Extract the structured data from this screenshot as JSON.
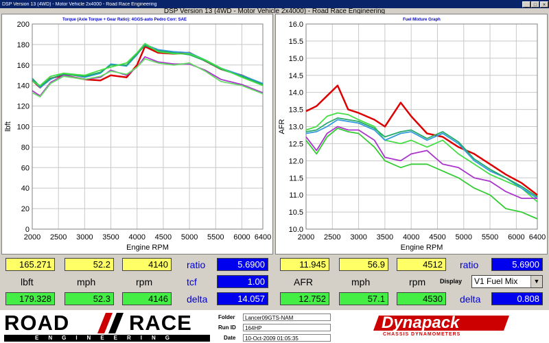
{
  "window": {
    "title": "DSP Version 13 (4WD) - Motor Vehicle 2x4000 - Road Race Engineering",
    "app_title": "DSP Version 13 (4WD - Motor Vehicle 2x4000) - Road Race Engineering"
  },
  "chart_data": [
    {
      "type": "line",
      "title": "Torque (Axle Torque + Gear Ratio): 4GGS-auto Pedro     Corr: SAE",
      "xlabel": "Engine RPM",
      "ylabel": "lbft",
      "xlim": [
        2000,
        6400
      ],
      "ylim": [
        0,
        200
      ],
      "xticks": [
        "2000",
        "2500",
        "3000",
        "3500",
        "4000",
        "4500",
        "5000",
        "5500",
        "6000",
        "6400"
      ],
      "yticks": [
        "0",
        "20",
        "40",
        "60",
        "80",
        "100",
        "120",
        "140",
        "160",
        "180",
        "200"
      ],
      "grid": true,
      "series": [
        {
          "color": "#dd0000",
          "x": [
            2000,
            2150,
            2350,
            2600,
            3000,
            3300,
            3500,
            3800,
            4000,
            4150,
            4400,
            4700,
            5000,
            5300,
            5600,
            6000,
            6400
          ],
          "y": [
            145,
            138,
            147,
            150,
            146,
            145,
            150,
            148,
            160,
            178,
            172,
            171,
            172,
            164,
            156,
            150,
            141
          ]
        },
        {
          "color": "#3399dd",
          "x": [
            2000,
            2150,
            2350,
            2600,
            3000,
            3300,
            3500,
            3800,
            4000,
            4150,
            4400,
            4700,
            5000,
            5300,
            5600,
            6000,
            6400
          ],
          "y": [
            146,
            138,
            146,
            152,
            148,
            152,
            161,
            159,
            170,
            180,
            175,
            173,
            172,
            165,
            157,
            150,
            142
          ]
        },
        {
          "color": "#22aa66",
          "x": [
            2000,
            2150,
            2350,
            2600,
            3000,
            3300,
            3500,
            3800,
            4000,
            4150,
            4400,
            4700,
            5000,
            5300,
            5600,
            6000,
            6400
          ],
          "y": [
            147,
            139,
            147,
            151,
            149,
            153,
            160,
            160,
            171,
            179,
            174,
            172,
            170,
            164,
            156,
            149,
            141
          ]
        },
        {
          "color": "#44dd44",
          "x": [
            2000,
            2150,
            2350,
            2600,
            3000,
            3300,
            3500,
            3800,
            4000,
            4150,
            4400,
            4700,
            5000,
            5300,
            5600,
            6000,
            6400
          ],
          "y": [
            144,
            140,
            149,
            152,
            150,
            155,
            158,
            162,
            172,
            181,
            173,
            171,
            171,
            165,
            157,
            148,
            140
          ]
        },
        {
          "color": "#aa33cc",
          "x": [
            2000,
            2150,
            2350,
            2600,
            3000,
            3300,
            3500,
            3800,
            4000,
            4150,
            4400,
            4700,
            5000,
            5300,
            5600,
            6000,
            6400
          ],
          "y": [
            135,
            130,
            143,
            150,
            146,
            148,
            155,
            150,
            158,
            168,
            163,
            161,
            161,
            155,
            146,
            141,
            133
          ]
        },
        {
          "color": "#66dd66",
          "x": [
            2000,
            2150,
            2350,
            2600,
            3000,
            3300,
            3500,
            3800,
            4000,
            4150,
            4400,
            4700,
            5000,
            5300,
            5600,
            6000,
            6400
          ],
          "y": [
            133,
            129,
            142,
            149,
            146,
            149,
            154,
            151,
            158,
            166,
            162,
            160,
            162,
            154,
            144,
            140,
            132
          ]
        }
      ]
    },
    {
      "type": "line",
      "title": "Fuel Mixture Graph",
      "xlabel": "Engine RPM",
      "ylabel": "AFR",
      "xlim": [
        2000,
        6400
      ],
      "ylim": [
        10.0,
        16.0
      ],
      "xticks": [
        "2000",
        "2500",
        "3000",
        "3500",
        "4000",
        "4500",
        "5000",
        "5500",
        "6000",
        "6400"
      ],
      "yticks": [
        "10.0",
        "10.5",
        "11.0",
        "11.5",
        "12.0",
        "12.5",
        "13.0",
        "13.5",
        "14.0",
        "14.5",
        "15.0",
        "15.5",
        "16.0"
      ],
      "grid": true,
      "series": [
        {
          "color": "#dd0000",
          "x": [
            2000,
            2200,
            2400,
            2600,
            2800,
            3000,
            3300,
            3500,
            3800,
            4000,
            4300,
            4600,
            4900,
            5200,
            5500,
            5800,
            6100,
            6400
          ],
          "y": [
            13.45,
            13.6,
            13.9,
            14.2,
            13.5,
            13.4,
            13.2,
            13.0,
            13.7,
            13.3,
            12.8,
            12.7,
            12.4,
            12.2,
            11.9,
            11.6,
            11.35,
            11.0
          ]
        },
        {
          "color": "#44dd44",
          "x": [
            2000,
            2200,
            2400,
            2600,
            2800,
            3000,
            3300,
            3500,
            3800,
            4000,
            4300,
            4600,
            4900,
            5200,
            5500,
            5800,
            6100,
            6400
          ],
          "y": [
            12.9,
            13.0,
            13.3,
            13.4,
            13.35,
            13.2,
            13.0,
            12.6,
            12.5,
            12.6,
            12.4,
            12.6,
            12.2,
            11.9,
            11.6,
            11.4,
            11.2,
            10.8
          ]
        },
        {
          "color": "#3399dd",
          "x": [
            2000,
            2200,
            2400,
            2600,
            2800,
            3000,
            3300,
            3500,
            3800,
            4000,
            4300,
            4600,
            4900,
            5200,
            5500,
            5800,
            6100,
            6400
          ],
          "y": [
            12.8,
            12.85,
            13.0,
            13.2,
            13.15,
            13.1,
            12.9,
            12.6,
            12.8,
            12.85,
            12.6,
            12.8,
            12.5,
            12.0,
            11.7,
            11.5,
            11.2,
            10.9
          ]
        },
        {
          "color": "#22aa66",
          "x": [
            2000,
            2200,
            2400,
            2600,
            2800,
            3000,
            3300,
            3500,
            3800,
            4000,
            4300,
            4600,
            4900,
            5200,
            5500,
            5800,
            6100,
            6400
          ],
          "y": [
            12.85,
            12.9,
            13.1,
            13.25,
            13.2,
            13.15,
            12.95,
            12.7,
            12.85,
            12.9,
            12.65,
            12.85,
            12.55,
            12.05,
            11.75,
            11.5,
            11.25,
            10.95
          ]
        },
        {
          "color": "#aa33cc",
          "x": [
            2000,
            2200,
            2400,
            2600,
            2800,
            3000,
            3300,
            3500,
            3800,
            4000,
            4300,
            4600,
            4900,
            5200,
            5500,
            5800,
            6100,
            6400
          ],
          "y": [
            12.7,
            12.3,
            12.8,
            13.0,
            12.9,
            12.9,
            12.6,
            12.1,
            12.0,
            12.2,
            12.3,
            11.9,
            11.8,
            11.5,
            11.4,
            11.1,
            10.9,
            10.9
          ]
        },
        {
          "color": "#33cc33",
          "x": [
            2000,
            2200,
            2400,
            2600,
            2800,
            3000,
            3300,
            3500,
            3800,
            4000,
            4300,
            4600,
            4900,
            5200,
            5500,
            5800,
            6100,
            6400
          ],
          "y": [
            12.6,
            12.2,
            12.7,
            12.95,
            12.85,
            12.8,
            12.4,
            12.0,
            11.8,
            11.9,
            11.9,
            11.7,
            11.5,
            11.2,
            11.0,
            10.6,
            10.5,
            10.3
          ]
        }
      ]
    }
  ],
  "left_readout": {
    "v1": "165.271",
    "v2": "52.2",
    "v3": "4140",
    "label1": "lbft",
    "label2": "mph",
    "label3": "rpm",
    "v4": "179.328",
    "v5": "52.3",
    "v6": "4146",
    "ratio_label": "ratio",
    "ratio_value": "5.6900",
    "tcf_label": "tcf",
    "tcf_value": "1.00",
    "delta_label": "delta",
    "delta_value": "14.057"
  },
  "right_readout": {
    "v1": "11.945",
    "v2": "56.9",
    "v3": "4512",
    "label1": "AFR",
    "label2": "mph",
    "label3": "rpm",
    "v4": "12.752",
    "v5": "57.1",
    "v6": "4530",
    "ratio_label": "ratio",
    "ratio_value": "5.6900",
    "display_label": "Display",
    "display_value": "V1 Fuel Mix",
    "delta_label": "delta",
    "delta_value": "0.808"
  },
  "footer": {
    "logo_road": "ROAD",
    "logo_race": "RACE",
    "logo_sub": "ENGINEERING",
    "folder_label": "Folder",
    "folder_value": "Lancer09GTS-NAM",
    "runid_label": "Run ID",
    "runid_value": "164HP",
    "date_label": "Date",
    "date_value": "10-Oct-2009  01:05:35",
    "brand": "Dynapack",
    "brand_sub": "CHASSIS DYNAMOMETERS"
  }
}
